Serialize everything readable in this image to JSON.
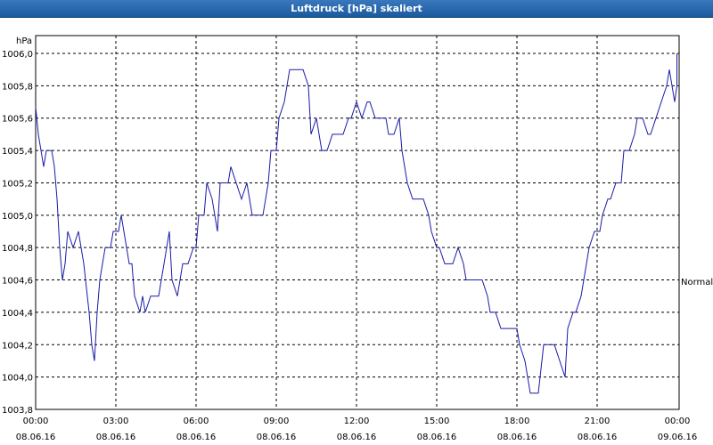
{
  "window": {
    "title": "Luftdruck [hPa] skaliert"
  },
  "colors": {
    "line": "#1a1aa8",
    "grid": "#000000",
    "title_bar": "#2a6ab3"
  },
  "chart_data": {
    "type": "line",
    "title": "Luftdruck [hPa] skaliert",
    "ylabel": "hPa",
    "ylim": [
      1003.8,
      1006.0
    ],
    "yticks": [
      "1006,0",
      "1005,8",
      "1005,6",
      "1005,4",
      "1005,2",
      "1005,0",
      "1004,8",
      "1004,6",
      "1004,4",
      "1004,2",
      "1004,0",
      "1003,8"
    ],
    "xlim_hours": [
      0,
      24
    ],
    "xticks": [
      {
        "time": "00:00",
        "date": "08.06.16"
      },
      {
        "time": "03:00",
        "date": "08.06.16"
      },
      {
        "time": "06:00",
        "date": "08.06.16"
      },
      {
        "time": "09:00",
        "date": "08.06.16"
      },
      {
        "time": "12:00",
        "date": "08.06.16"
      },
      {
        "time": "15:00",
        "date": "08.06.16"
      },
      {
        "time": "18:00",
        "date": "08.06.16"
      },
      {
        "time": "21:00",
        "date": "08.06.16"
      },
      {
        "time": "00:00",
        "date": "09.06.16"
      }
    ],
    "reference_label": "Normal",
    "reference_value": 1004.6,
    "grid": true,
    "series": [
      {
        "points": [
          [
            0.0,
            1005.67
          ],
          [
            0.1,
            1005.5
          ],
          [
            0.2,
            1005.4
          ],
          [
            0.3,
            1005.3
          ],
          [
            0.4,
            1005.4
          ],
          [
            0.6,
            1005.4
          ],
          [
            0.7,
            1005.3
          ],
          [
            0.8,
            1005.1
          ],
          [
            0.9,
            1004.8
          ],
          [
            1.0,
            1004.6
          ],
          [
            1.1,
            1004.7
          ],
          [
            1.2,
            1004.9
          ],
          [
            1.4,
            1004.8
          ],
          [
            1.6,
            1004.9
          ],
          [
            1.8,
            1004.7
          ],
          [
            2.0,
            1004.4
          ],
          [
            2.1,
            1004.2
          ],
          [
            2.2,
            1004.1
          ],
          [
            2.3,
            1004.4
          ],
          [
            2.4,
            1004.6
          ],
          [
            2.5,
            1004.7
          ],
          [
            2.6,
            1004.8
          ],
          [
            2.8,
            1004.8
          ],
          [
            2.9,
            1004.9
          ],
          [
            3.1,
            1004.9
          ],
          [
            3.2,
            1005.0
          ],
          [
            3.3,
            1004.9
          ],
          [
            3.5,
            1004.7
          ],
          [
            3.6,
            1004.7
          ],
          [
            3.7,
            1004.5
          ],
          [
            3.9,
            1004.4
          ],
          [
            4.0,
            1004.5
          ],
          [
            4.1,
            1004.4
          ],
          [
            4.3,
            1004.5
          ],
          [
            4.5,
            1004.5
          ],
          [
            4.6,
            1004.5
          ],
          [
            4.7,
            1004.6
          ],
          [
            4.8,
            1004.7
          ],
          [
            5.0,
            1004.9
          ],
          [
            5.1,
            1004.6
          ],
          [
            5.3,
            1004.5
          ],
          [
            5.5,
            1004.7
          ],
          [
            5.7,
            1004.7
          ],
          [
            5.9,
            1004.8
          ],
          [
            6.0,
            1004.8
          ],
          [
            6.1,
            1005.0
          ],
          [
            6.3,
            1005.0
          ],
          [
            6.4,
            1005.2
          ],
          [
            6.6,
            1005.1
          ],
          [
            6.8,
            1004.9
          ],
          [
            6.9,
            1005.2
          ],
          [
            7.0,
            1005.2
          ],
          [
            7.2,
            1005.2
          ],
          [
            7.3,
            1005.3
          ],
          [
            7.5,
            1005.2
          ],
          [
            7.7,
            1005.1
          ],
          [
            7.9,
            1005.2
          ],
          [
            8.1,
            1005.0
          ],
          [
            8.3,
            1005.0
          ],
          [
            8.5,
            1005.0
          ],
          [
            8.7,
            1005.2
          ],
          [
            8.8,
            1005.4
          ],
          [
            9.0,
            1005.4
          ],
          [
            9.1,
            1005.6
          ],
          [
            9.3,
            1005.7
          ],
          [
            9.5,
            1005.9
          ],
          [
            9.7,
            1005.9
          ],
          [
            9.9,
            1005.9
          ],
          [
            10.0,
            1005.9
          ],
          [
            10.2,
            1005.8
          ],
          [
            10.3,
            1005.5
          ],
          [
            10.5,
            1005.6
          ],
          [
            10.7,
            1005.4
          ],
          [
            10.9,
            1005.4
          ],
          [
            11.1,
            1005.5
          ],
          [
            11.3,
            1005.5
          ],
          [
            11.5,
            1005.5
          ],
          [
            11.7,
            1005.6
          ],
          [
            11.8,
            1005.6
          ],
          [
            12.0,
            1005.7
          ],
          [
            12.2,
            1005.6
          ],
          [
            12.4,
            1005.7
          ],
          [
            12.5,
            1005.7
          ],
          [
            12.7,
            1005.6
          ],
          [
            12.9,
            1005.6
          ],
          [
            13.1,
            1005.6
          ],
          [
            13.2,
            1005.5
          ],
          [
            13.4,
            1005.5
          ],
          [
            13.6,
            1005.6
          ],
          [
            13.7,
            1005.4
          ],
          [
            13.9,
            1005.2
          ],
          [
            14.1,
            1005.1
          ],
          [
            14.3,
            1005.1
          ],
          [
            14.5,
            1005.1
          ],
          [
            14.7,
            1005.0
          ],
          [
            14.8,
            1004.9
          ],
          [
            15.0,
            1004.8
          ],
          [
            15.1,
            1004.8
          ],
          [
            15.3,
            1004.7
          ],
          [
            15.5,
            1004.7
          ],
          [
            15.6,
            1004.7
          ],
          [
            15.8,
            1004.8
          ],
          [
            16.0,
            1004.7
          ],
          [
            16.1,
            1004.6
          ],
          [
            16.3,
            1004.6
          ],
          [
            16.5,
            1004.6
          ],
          [
            16.7,
            1004.6
          ],
          [
            16.9,
            1004.5
          ],
          [
            17.0,
            1004.4
          ],
          [
            17.2,
            1004.4
          ],
          [
            17.4,
            1004.3
          ],
          [
            17.6,
            1004.3
          ],
          [
            17.8,
            1004.3
          ],
          [
            18.0,
            1004.3
          ],
          [
            18.1,
            1004.2
          ],
          [
            18.3,
            1004.1
          ],
          [
            18.5,
            1003.9
          ],
          [
            18.6,
            1003.9
          ],
          [
            18.8,
            1003.9
          ],
          [
            19.0,
            1004.2
          ],
          [
            19.2,
            1004.2
          ],
          [
            19.4,
            1004.2
          ],
          [
            19.6,
            1004.1
          ],
          [
            19.8,
            1004.0
          ],
          [
            19.9,
            1004.3
          ],
          [
            20.1,
            1004.4
          ],
          [
            20.2,
            1004.4
          ],
          [
            20.4,
            1004.5
          ],
          [
            20.6,
            1004.7
          ],
          [
            20.7,
            1004.8
          ],
          [
            20.9,
            1004.9
          ],
          [
            21.1,
            1004.9
          ],
          [
            21.2,
            1005.0
          ],
          [
            21.4,
            1005.1
          ],
          [
            21.5,
            1005.1
          ],
          [
            21.7,
            1005.2
          ],
          [
            21.9,
            1005.2
          ],
          [
            22.0,
            1005.4
          ],
          [
            22.2,
            1005.4
          ],
          [
            22.4,
            1005.5
          ],
          [
            22.5,
            1005.6
          ],
          [
            22.7,
            1005.6
          ],
          [
            22.9,
            1005.5
          ],
          [
            23.0,
            1005.5
          ],
          [
            23.2,
            1005.6
          ],
          [
            23.4,
            1005.7
          ],
          [
            23.6,
            1005.8
          ],
          [
            23.7,
            1005.9
          ],
          [
            23.9,
            1005.7
          ],
          [
            24.1,
            1005.8
          ],
          [
            24.3,
            1005.9
          ],
          [
            24.5,
            1006.0
          ],
          [
            24.7,
            1006.0
          ]
        ]
      }
    ]
  }
}
